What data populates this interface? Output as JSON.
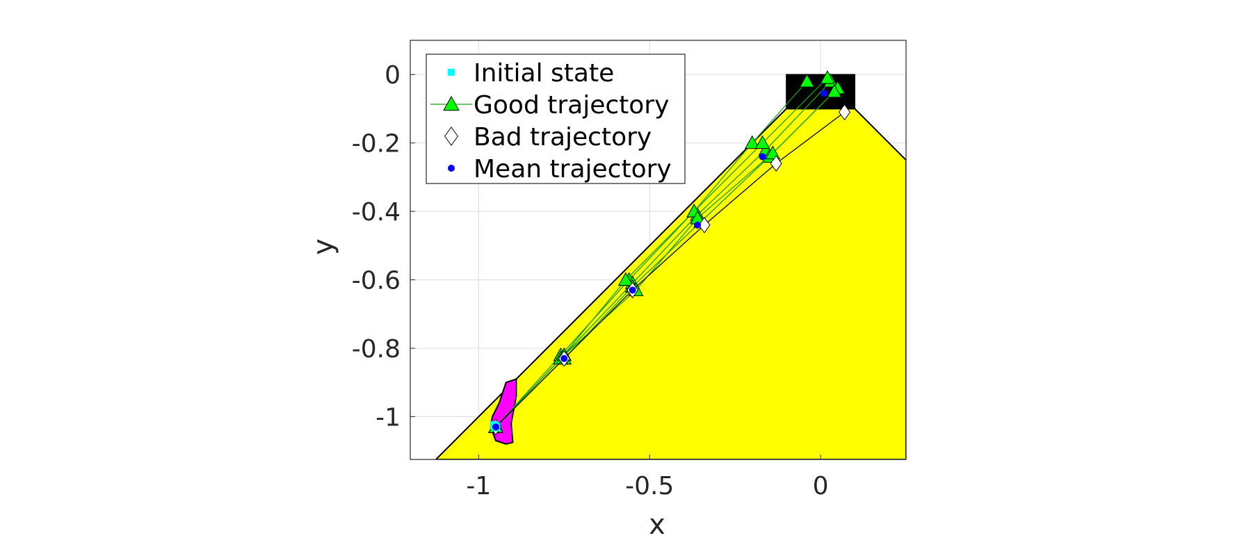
{
  "chart_data": {
    "type": "scatter",
    "title": "",
    "xlabel": "x",
    "ylabel": "y",
    "xlim": [
      -1.2,
      0.25
    ],
    "ylim": [
      -1.125,
      0.1
    ],
    "xticks": [
      -1,
      -0.5,
      0
    ],
    "xtick_labels": [
      "-1",
      "-0.5",
      "0"
    ],
    "yticks": [
      0,
      -0.2,
      -0.4,
      -0.6,
      -0.8,
      -1
    ],
    "ytick_labels": [
      "0",
      "-0.2",
      "-0.4",
      "-0.6",
      "-0.8",
      "-1"
    ],
    "grid": true,
    "legend_position": "top-left",
    "colors": {
      "safe_region": "#ffff00",
      "target_region": "#000000",
      "initial_set": "#ff00ff",
      "initial_state": "#00ffff",
      "good": "#00ff00",
      "bad": "#ffffff",
      "mean": "#0000ff"
    },
    "regions": {
      "safe_region": [
        [
          -1.125,
          -1.125
        ],
        [
          -0.1,
          -0.1
        ],
        [
          0.1,
          -0.1
        ],
        [
          0.25,
          -0.25
        ],
        [
          0.25,
          -1.125
        ]
      ],
      "target_region": [
        [
          -0.1,
          0
        ],
        [
          0.1,
          0
        ],
        [
          0.1,
          -0.1
        ],
        [
          -0.1,
          -0.1
        ]
      ],
      "initial_set": [
        [
          -0.92,
          -0.9
        ],
        [
          -0.89,
          -0.89
        ],
        [
          -0.89,
          -0.94
        ],
        [
          -0.905,
          -1.02
        ],
        [
          -0.9,
          -1.075
        ],
        [
          -0.92,
          -1.08
        ],
        [
          -0.95,
          -1.07
        ],
        [
          -0.965,
          -1.03
        ],
        [
          -0.96,
          -1.0
        ],
        [
          -0.94,
          -0.96
        ]
      ]
    },
    "legend": [
      {
        "label": "Initial state",
        "marker": "square",
        "color": "#00ffff"
      },
      {
        "label": "Good trajectory",
        "marker": "triangle",
        "color": "#00ff00"
      },
      {
        "label": "Bad trajectory",
        "marker": "diamond",
        "color": "#ffffff"
      },
      {
        "label": "Mean trajectory",
        "marker": "dot",
        "color": "#0000ff"
      }
    ],
    "initial_state": [
      [
        -0.955,
        -1.025
      ],
      [
        -0.95,
        -1.03
      ]
    ],
    "good_trajectories": [
      {
        "x": [
          -0.95,
          -0.76,
          -0.56,
          -0.37,
          -0.2,
          -0.04
        ],
        "y": [
          -1.03,
          -0.82,
          -0.6,
          -0.4,
          -0.2,
          -0.02
        ]
      },
      {
        "x": [
          -0.95,
          -0.76,
          -0.55,
          -0.36,
          -0.16,
          0.03
        ],
        "y": [
          -1.03,
          -0.83,
          -0.61,
          -0.41,
          -0.22,
          -0.02
        ]
      },
      {
        "x": [
          -0.95,
          -0.75,
          -0.55,
          -0.35,
          -0.15,
          0.05
        ],
        "y": [
          -1.03,
          -0.83,
          -0.62,
          -0.43,
          -0.24,
          -0.04
        ]
      },
      {
        "x": [
          -0.95,
          -0.76,
          -0.57,
          -0.37,
          -0.17,
          0.02
        ],
        "y": [
          -1.03,
          -0.83,
          -0.6,
          -0.4,
          -0.2,
          -0.01
        ]
      },
      {
        "x": [
          -0.95,
          -0.75,
          -0.54,
          -0.36,
          -0.14,
          0.04
        ],
        "y": [
          -1.03,
          -0.82,
          -0.63,
          -0.42,
          -0.23,
          -0.05
        ]
      }
    ],
    "bad_trajectories": [
      {
        "x": [
          -0.95,
          -0.75,
          -0.55,
          -0.34,
          -0.13,
          0.07
        ],
        "y": [
          -1.03,
          -0.83,
          -0.63,
          -0.44,
          -0.26,
          -0.11
        ]
      }
    ],
    "mean_trajectory": {
      "x": [
        -0.95,
        -0.75,
        -0.55,
        -0.36,
        -0.17,
        0.01
      ],
      "y": [
        -1.03,
        -0.83,
        -0.63,
        -0.44,
        -0.24,
        -0.055
      ]
    }
  }
}
